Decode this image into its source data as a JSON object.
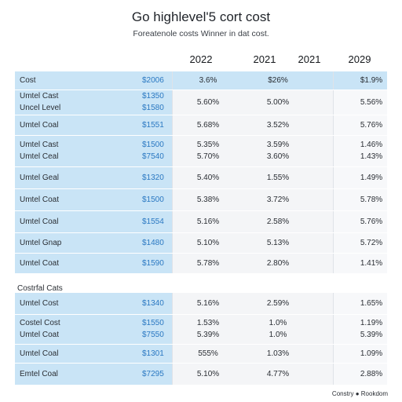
{
  "header": {
    "title": "Go highlevel'5 cort cost",
    "subtitle": "Foreatenole costs Winner in dat cost."
  },
  "years": [
    "2022",
    "2021",
    "2021",
    "2029"
  ],
  "table1": [
    {
      "lines": [
        {
          "name": "Cost",
          "price": "$2006"
        }
      ],
      "v": [
        "3.6%",
        "$26%",
        "$1.9%"
      ],
      "hi": true
    },
    {
      "lines": [
        {
          "name": "Umtel Cast",
          "price": "$1350"
        },
        {
          "name": "Uncel Level",
          "price": "$1580"
        }
      ],
      "v": [
        "5.60%",
        "5.00%",
        "5.56%"
      ]
    },
    {
      "lines": [
        {
          "name": "Umtel Coal",
          "price": "$1551"
        }
      ],
      "v": [
        "5.68%",
        "3.52%",
        "5.76%"
      ]
    },
    {
      "lines": [
        {
          "name": "Umtel Cast",
          "price": "$1500"
        },
        {
          "name": "Umtel Ceal",
          "price": "$7540"
        }
      ],
      "v": [
        "5.35%\n5.70%",
        "3.59%\n3.60%",
        "1.46%\n1.43%"
      ]
    },
    {
      "lines": [
        {
          "name": "Umtel Geal",
          "price": "$1320"
        }
      ],
      "v": [
        "5.40%",
        "1.55%",
        "1.49%"
      ]
    },
    {
      "lines": [
        {
          "name": "Umtel Coat",
          "price": "$1500"
        }
      ],
      "v": [
        "5.38%",
        "3.72%",
        "5.78%"
      ]
    },
    {
      "lines": [
        {
          "name": "Umtel Coal",
          "price": "$1554"
        }
      ],
      "v": [
        "5.16%",
        "2.58%",
        "5.76%"
      ]
    },
    {
      "lines": [
        {
          "name": "Umtel Gnap",
          "price": "$1480"
        }
      ],
      "v": [
        "5.10%",
        "5.13%",
        "5.72%"
      ]
    },
    {
      "lines": [
        {
          "name": "Umtel Coat",
          "price": "$1590"
        }
      ],
      "v": [
        "5.78%",
        "2.80%",
        "1.41%"
      ]
    }
  ],
  "section_label": "Costrfal Cats",
  "table2": [
    {
      "lines": [
        {
          "name": "Umtel Cost",
          "price": "$1340"
        }
      ],
      "v": [
        "5.16%",
        "2.59%",
        "1.65%"
      ]
    },
    {
      "lines": [
        {
          "name": "Costel Cost",
          "price": "$1550"
        },
        {
          "name": "Umtel Coat",
          "price": "$7550"
        }
      ],
      "v": [
        "1.53%\n5.39%",
        "1.0%\n1.0%",
        "1.19%\n5.39%"
      ]
    },
    {
      "lines": [
        {
          "name": "Umtel Coal",
          "price": "$1301"
        }
      ],
      "v": [
        "555%",
        "1.03%",
        "1.09%"
      ]
    },
    {
      "lines": [
        {
          "name": "Emtel Coal",
          "price": "$7295"
        }
      ],
      "v": [
        "5.10%",
        "4.77%",
        "2.88%"
      ]
    }
  ],
  "footer": "Constry ● Rookdom"
}
